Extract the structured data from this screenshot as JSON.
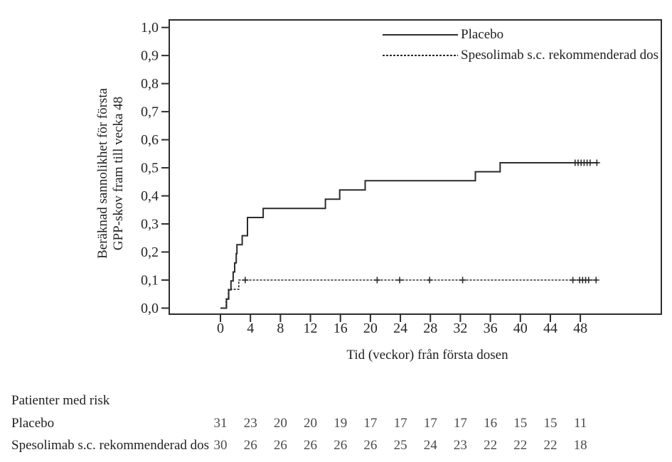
{
  "chart_data": {
    "type": "line",
    "subtype": "kaplan_meier_step",
    "title": "",
    "xlabel": "Tid (veckor) från första dosen",
    "ylabel_lines": [
      "Beräknad sannolikhet för första",
      "GPP-skov fram till vecka 48"
    ],
    "xlim": [
      -6.83,
      58.8
    ],
    "ylim": [
      -0.0215,
      1.027
    ],
    "xticks": [
      0,
      4,
      8,
      12,
      16,
      20,
      24,
      28,
      32,
      36,
      40,
      44,
      48
    ],
    "xtick_labels": [
      "0",
      "4",
      "8",
      "12",
      "16",
      "20",
      "24",
      "28",
      "32",
      "36",
      "40",
      "44",
      "48"
    ],
    "yticks": [
      0.0,
      0.1,
      0.2,
      0.3,
      0.4,
      0.5,
      0.6,
      0.7,
      0.8,
      0.9,
      1.0
    ],
    "ytick_labels": [
      "0,0",
      "0,1",
      "0,2",
      "0,3",
      "0,4",
      "0,5",
      "0,6",
      "0,7",
      "0,8",
      "0,9",
      "1,0"
    ],
    "grid": false,
    "legend_position": "top-right-inside",
    "axis_color": "#2d2d2d",
    "line_color": "#2b2b2b",
    "series": [
      {
        "name": "Placebo",
        "style": "solid",
        "points": [
          [
            0,
            0
          ],
          [
            0.8,
            0.032
          ],
          [
            1.1,
            0.065
          ],
          [
            1.4,
            0.097
          ],
          [
            1.7,
            0.129
          ],
          [
            1.9,
            0.161
          ],
          [
            2.1,
            0.194
          ],
          [
            2.2,
            0.226
          ],
          [
            2.9,
            0.258
          ],
          [
            3.6,
            0.323
          ],
          [
            5.7,
            0.355
          ],
          [
            14.0,
            0.388
          ],
          [
            15.9,
            0.421
          ],
          [
            19.3,
            0.454
          ],
          [
            34.0,
            0.486
          ],
          [
            37.3,
            0.518
          ],
          [
            50.4,
            0.518
          ]
        ],
        "censors": [
          [
            47.3,
            0.518
          ],
          [
            47.7,
            0.518
          ],
          [
            48.1,
            0.518
          ],
          [
            48.5,
            0.518
          ],
          [
            48.9,
            0.518
          ],
          [
            49.3,
            0.518
          ],
          [
            50.2,
            0.518
          ]
        ]
      },
      {
        "name": "Spesolimab s.c. rekommenderad dos",
        "style": "dotted",
        "points": [
          [
            0,
            0
          ],
          [
            0.75,
            0.033
          ],
          [
            1.05,
            0.067
          ],
          [
            2.45,
            0.1
          ],
          [
            50.2,
            0.1
          ]
        ],
        "censors": [
          [
            3.3,
            0.1
          ],
          [
            20.9,
            0.1
          ],
          [
            23.9,
            0.1
          ],
          [
            27.9,
            0.1
          ],
          [
            32.3,
            0.1
          ],
          [
            47.0,
            0.1
          ],
          [
            47.9,
            0.1
          ],
          [
            48.3,
            0.1
          ],
          [
            48.7,
            0.1
          ],
          [
            49.1,
            0.1
          ],
          [
            50.1,
            0.1
          ]
        ]
      }
    ]
  },
  "risk_table": {
    "title": "Patienter med risk",
    "weeks": [
      0,
      4,
      8,
      12,
      16,
      20,
      24,
      28,
      32,
      36,
      40,
      44,
      48
    ],
    "rows": [
      {
        "label": "Placebo",
        "counts": [
          "31",
          "23",
          "20",
          "20",
          "19",
          "17",
          "17",
          "17",
          "17",
          "16",
          "15",
          "15",
          "11"
        ]
      },
      {
        "label": "Spesolimab s.c. rekommenderad dos",
        "counts": [
          "30",
          "26",
          "26",
          "26",
          "26",
          "26",
          "25",
          "24",
          "23",
          "22",
          "22",
          "22",
          "18"
        ]
      }
    ]
  }
}
